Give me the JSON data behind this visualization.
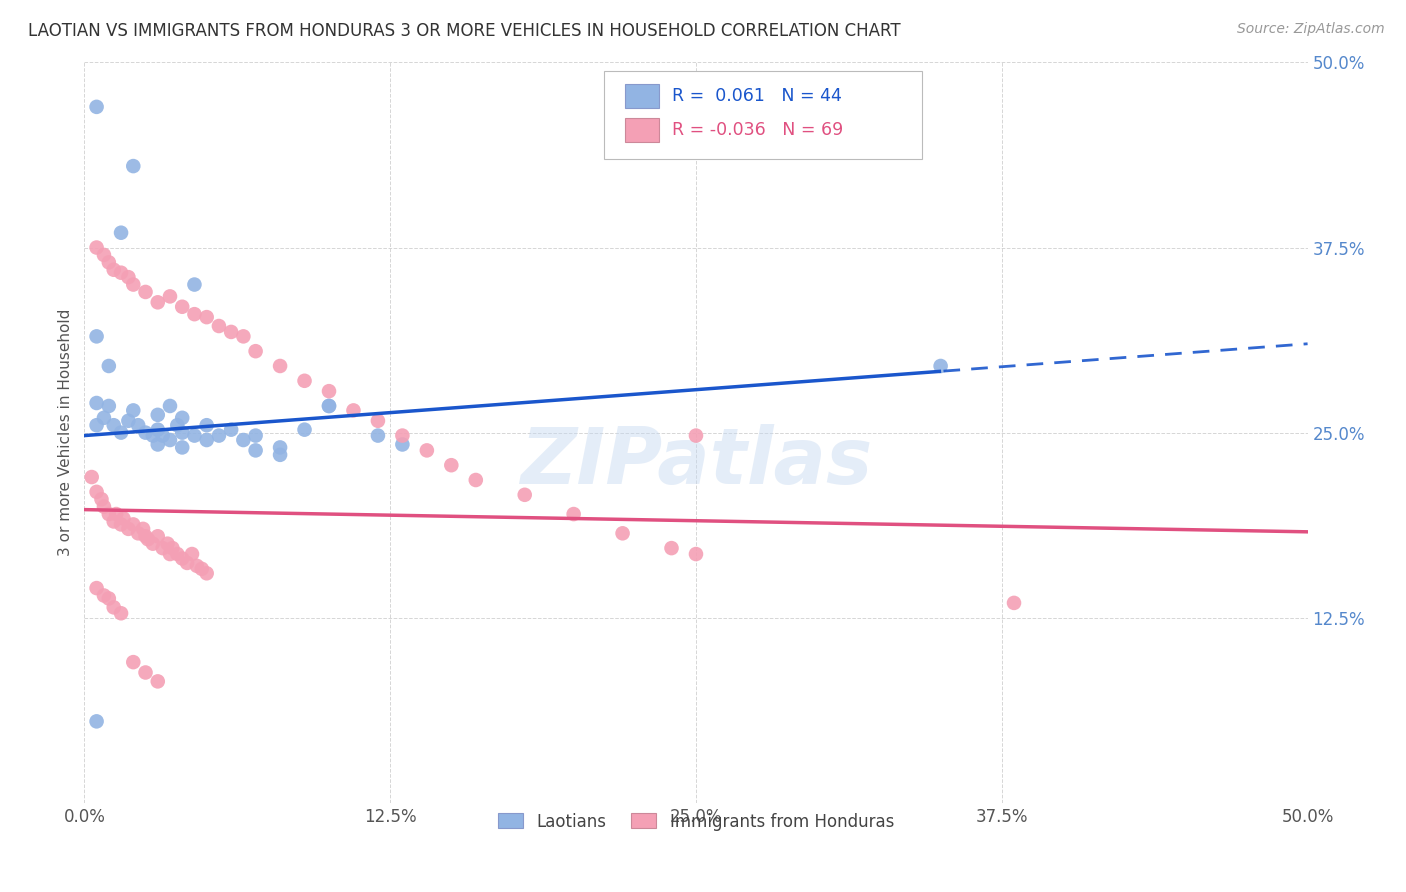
{
  "title": "LAOTIAN VS IMMIGRANTS FROM HONDURAS 3 OR MORE VEHICLES IN HOUSEHOLD CORRELATION CHART",
  "source": "Source: ZipAtlas.com",
  "ylabel": "3 or more Vehicles in Household",
  "xlim": [
    0.0,
    0.5
  ],
  "ylim": [
    0.0,
    0.5
  ],
  "yticks": [
    0.0,
    0.125,
    0.25,
    0.375,
    0.5
  ],
  "ytick_labels": [
    "",
    "12.5%",
    "25.0%",
    "37.5%",
    "50.0%"
  ],
  "xticks": [
    0.0,
    0.125,
    0.25,
    0.375,
    0.5
  ],
  "xtick_labels": [
    "0.0%",
    "12.5%",
    "25.0%",
    "37.5%",
    "50.0%"
  ],
  "legend_label1": "Laotians",
  "legend_label2": "Immigrants from Honduras",
  "R1": 0.061,
  "N1": 44,
  "R2": -0.036,
  "N2": 69,
  "blue_color": "#92B4E3",
  "pink_color": "#F4A0B5",
  "blue_line_color": "#1A56CC",
  "pink_line_color": "#E05080",
  "watermark": "ZIPatlas",
  "blue_scatter_x": [
    0.005,
    0.02,
    0.015,
    0.045,
    0.005,
    0.01,
    0.005,
    0.01,
    0.02,
    0.03,
    0.035,
    0.04,
    0.005,
    0.008,
    0.012,
    0.015,
    0.018,
    0.022,
    0.025,
    0.028,
    0.03,
    0.032,
    0.035,
    0.038,
    0.04,
    0.045,
    0.05,
    0.055,
    0.06,
    0.065,
    0.07,
    0.08,
    0.09,
    0.1,
    0.12,
    0.03,
    0.04,
    0.05,
    0.07,
    0.08,
    0.1,
    0.13,
    0.35,
    0.005
  ],
  "blue_scatter_y": [
    0.47,
    0.43,
    0.385,
    0.35,
    0.315,
    0.295,
    0.27,
    0.268,
    0.265,
    0.262,
    0.268,
    0.26,
    0.255,
    0.26,
    0.255,
    0.25,
    0.258,
    0.255,
    0.25,
    0.248,
    0.252,
    0.248,
    0.245,
    0.255,
    0.25,
    0.248,
    0.255,
    0.248,
    0.252,
    0.245,
    0.248,
    0.24,
    0.252,
    0.268,
    0.248,
    0.242,
    0.24,
    0.245,
    0.238,
    0.235,
    0.268,
    0.242,
    0.295,
    0.055
  ],
  "pink_scatter_x": [
    0.003,
    0.005,
    0.007,
    0.008,
    0.01,
    0.012,
    0.013,
    0.015,
    0.016,
    0.018,
    0.02,
    0.022,
    0.024,
    0.025,
    0.026,
    0.028,
    0.03,
    0.032,
    0.034,
    0.035,
    0.036,
    0.038,
    0.04,
    0.042,
    0.044,
    0.046,
    0.048,
    0.05,
    0.005,
    0.008,
    0.01,
    0.012,
    0.015,
    0.018,
    0.02,
    0.025,
    0.03,
    0.035,
    0.04,
    0.045,
    0.05,
    0.055,
    0.06,
    0.065,
    0.07,
    0.08,
    0.09,
    0.1,
    0.11,
    0.12,
    0.13,
    0.14,
    0.15,
    0.16,
    0.18,
    0.2,
    0.22,
    0.24,
    0.25,
    0.005,
    0.008,
    0.01,
    0.012,
    0.015,
    0.02,
    0.025,
    0.03,
    0.25,
    0.38
  ],
  "pink_scatter_y": [
    0.22,
    0.21,
    0.205,
    0.2,
    0.195,
    0.19,
    0.195,
    0.188,
    0.192,
    0.185,
    0.188,
    0.182,
    0.185,
    0.18,
    0.178,
    0.175,
    0.18,
    0.172,
    0.175,
    0.168,
    0.172,
    0.168,
    0.165,
    0.162,
    0.168,
    0.16,
    0.158,
    0.155,
    0.375,
    0.37,
    0.365,
    0.36,
    0.358,
    0.355,
    0.35,
    0.345,
    0.338,
    0.342,
    0.335,
    0.33,
    0.328,
    0.322,
    0.318,
    0.315,
    0.305,
    0.295,
    0.285,
    0.278,
    0.265,
    0.258,
    0.248,
    0.238,
    0.228,
    0.218,
    0.208,
    0.195,
    0.182,
    0.172,
    0.168,
    0.145,
    0.14,
    0.138,
    0.132,
    0.128,
    0.095,
    0.088,
    0.082,
    0.248,
    0.135
  ]
}
